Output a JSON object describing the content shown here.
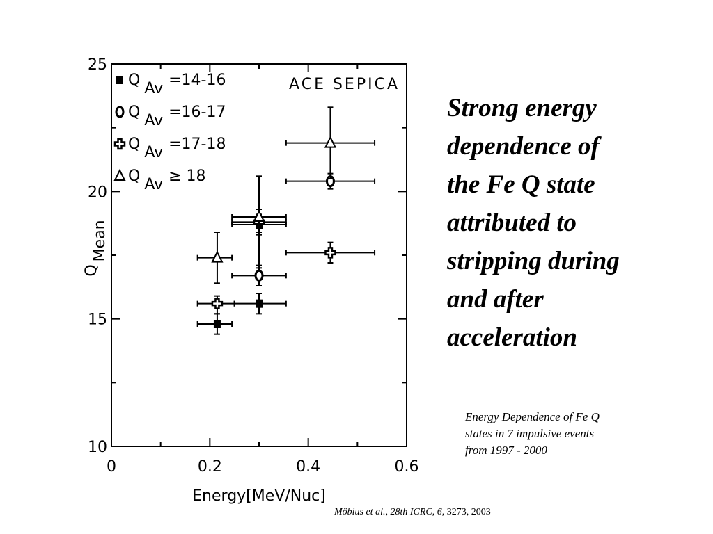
{
  "headline": "Strong energy\ndependence of\nthe Fe Q state\nattributed to\nstripping during\nand after\nacceleration",
  "caption": "Energy Dependence of Fe Q\nstates in 7 impulsive events\nfrom 1997 - 2000",
  "citation": {
    "authors": "Möbius et al., 28th ICRC, 6,",
    "rest": " 3273, 2003"
  },
  "chart_data": {
    "type": "scatter",
    "title": "ACE SEPICA",
    "xlabel": "Energy[MeV/Nuc]",
    "ylabel": "Q",
    "ylabel_sub": "Mean",
    "xlim": [
      0,
      0.6
    ],
    "ylim": [
      10,
      25
    ],
    "xticks": [
      "0",
      "0.2",
      "0.4",
      "0.6"
    ],
    "yticks": [
      "10",
      "15",
      "20",
      "25"
    ],
    "grid": false,
    "legend_position": "top-left",
    "series": [
      {
        "name": "14-16",
        "marker": "square",
        "points": [
          {
            "x": 0.215,
            "y": 14.8,
            "xlo": 0.175,
            "xhi": 0.245,
            "ylo": 14.4,
            "yhi": 15.2
          },
          {
            "x": 0.3,
            "y": 15.6,
            "xlo": 0.25,
            "xhi": 0.355,
            "ylo": 15.2,
            "yhi": 16.0
          },
          {
            "x": 0.3,
            "y": 18.7,
            "xlo": 0.245,
            "xhi": 0.355,
            "ylo": 18.3,
            "yhi": 19.1
          }
        ]
      },
      {
        "name": "16-17",
        "marker": "circle",
        "points": [
          {
            "x": 0.3,
            "y": 16.7,
            "xlo": 0.245,
            "xhi": 0.355,
            "ylo": 16.3,
            "yhi": 17.1
          },
          {
            "x": 0.445,
            "y": 20.4,
            "xlo": 0.355,
            "xhi": 0.535,
            "ylo": 20.1,
            "yhi": 20.7
          }
        ]
      },
      {
        "name": "17-18",
        "marker": "plus",
        "points": [
          {
            "x": 0.215,
            "y": 15.6,
            "xlo": 0.175,
            "xhi": 0.25,
            "ylo": 15.2,
            "yhi": 15.9
          },
          {
            "x": 0.3,
            "y": 18.8,
            "xlo": 0.245,
            "xhi": 0.355,
            "ylo": 18.4,
            "yhi": 19.3
          },
          {
            "x": 0.445,
            "y": 17.6,
            "xlo": 0.355,
            "xhi": 0.535,
            "ylo": 17.2,
            "yhi": 18.0
          }
        ]
      },
      {
        "name": "≥ 18",
        "marker": "triangle",
        "points": [
          {
            "x": 0.215,
            "y": 17.4,
            "xlo": 0.175,
            "xhi": 0.245,
            "ylo": 16.4,
            "yhi": 18.4
          },
          {
            "x": 0.3,
            "y": 19.0,
            "xlo": 0.245,
            "xhi": 0.355,
            "ylo": 17.0,
            "yhi": 20.6
          },
          {
            "x": 0.445,
            "y": 21.9,
            "xlo": 0.355,
            "xhi": 0.535,
            "ylo": 20.5,
            "yhi": 23.3
          }
        ]
      }
    ],
    "legend_prefix": "Q",
    "legend_sub": "Av",
    "legend_labels": [
      "=14-16",
      "=16-17",
      "=17-18",
      "≥  18"
    ]
  }
}
